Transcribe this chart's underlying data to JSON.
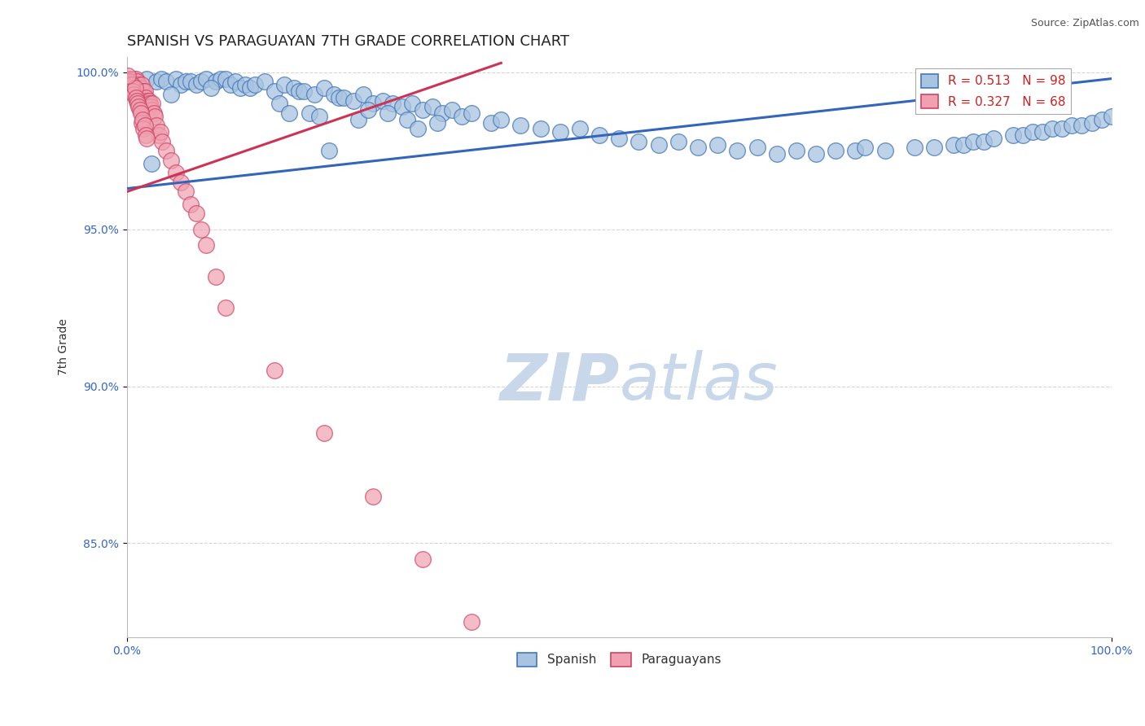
{
  "title": "SPANISH VS PARAGUAYAN 7TH GRADE CORRELATION CHART",
  "source_text": "Source: ZipAtlas.com",
  "ylabel": "7th Grade",
  "xlim": [
    0.0,
    1.0
  ],
  "ylim": [
    0.82,
    1.005
  ],
  "yticks": [
    0.85,
    0.9,
    0.95,
    1.0
  ],
  "ytick_labels": [
    "85.0%",
    "90.0%",
    "95.0%",
    "100.0%"
  ],
  "legend_blue_label": "R = 0.513   N = 98",
  "legend_pink_label": "R = 0.327   N = 68",
  "legend_series_blue": "Spanish",
  "legend_series_pink": "Paraguayans",
  "blue_color": "#a8c4e0",
  "pink_color": "#f0a0b0",
  "blue_edge_color": "#4477bb",
  "pink_edge_color": "#cc4466",
  "blue_line_color": "#3366bb",
  "pink_line_color": "#cc3355",
  "watermark_zip": "ZIP",
  "watermark_atlas": "atlas",
  "watermark_color": "#c8d8ea",
  "background_color": "#ffffff",
  "grid_color": "#cccccc",
  "title_fontsize": 13,
  "blue_x": [
    0.02,
    0.03,
    0.035,
    0.04,
    0.05,
    0.055,
    0.06,
    0.065,
    0.07,
    0.075,
    0.08,
    0.09,
    0.095,
    0.1,
    0.105,
    0.11,
    0.115,
    0.12,
    0.125,
    0.13,
    0.14,
    0.15,
    0.16,
    0.17,
    0.175,
    0.18,
    0.19,
    0.2,
    0.21,
    0.215,
    0.22,
    0.23,
    0.24,
    0.25,
    0.26,
    0.27,
    0.28,
    0.29,
    0.3,
    0.31,
    0.32,
    0.33,
    0.34,
    0.35,
    0.37,
    0.38,
    0.4,
    0.42,
    0.44,
    0.46,
    0.48,
    0.5,
    0.52,
    0.54,
    0.56,
    0.58,
    0.6,
    0.62,
    0.64,
    0.66,
    0.68,
    0.7,
    0.72,
    0.74,
    0.75,
    0.77,
    0.8,
    0.82,
    0.84,
    0.85,
    0.86,
    0.87,
    0.88,
    0.9,
    0.91,
    0.92,
    0.93,
    0.94,
    0.95,
    0.96,
    0.97,
    0.98,
    0.99,
    1.0,
    0.025,
    0.045,
    0.085,
    0.155,
    0.165,
    0.185,
    0.195,
    0.205,
    0.235,
    0.245,
    0.265,
    0.285,
    0.295,
    0.315
  ],
  "blue_y": [
    0.998,
    0.997,
    0.998,
    0.997,
    0.998,
    0.996,
    0.997,
    0.997,
    0.996,
    0.997,
    0.998,
    0.997,
    0.998,
    0.998,
    0.996,
    0.997,
    0.995,
    0.996,
    0.995,
    0.996,
    0.997,
    0.994,
    0.996,
    0.995,
    0.994,
    0.994,
    0.993,
    0.995,
    0.993,
    0.992,
    0.992,
    0.991,
    0.993,
    0.99,
    0.991,
    0.99,
    0.989,
    0.99,
    0.988,
    0.989,
    0.987,
    0.988,
    0.986,
    0.987,
    0.984,
    0.985,
    0.983,
    0.982,
    0.981,
    0.982,
    0.98,
    0.979,
    0.978,
    0.977,
    0.978,
    0.976,
    0.977,
    0.975,
    0.976,
    0.974,
    0.975,
    0.974,
    0.975,
    0.975,
    0.976,
    0.975,
    0.976,
    0.976,
    0.977,
    0.977,
    0.978,
    0.978,
    0.979,
    0.98,
    0.98,
    0.981,
    0.981,
    0.982,
    0.982,
    0.983,
    0.983,
    0.984,
    0.985,
    0.986,
    0.971,
    0.993,
    0.995,
    0.99,
    0.987,
    0.987,
    0.986,
    0.975,
    0.985,
    0.988,
    0.987,
    0.985,
    0.982,
    0.984
  ],
  "pink_x": [
    0.001,
    0.002,
    0.003,
    0.004,
    0.005,
    0.006,
    0.007,
    0.008,
    0.009,
    0.01,
    0.011,
    0.012,
    0.013,
    0.014,
    0.015,
    0.016,
    0.017,
    0.018,
    0.019,
    0.02,
    0.021,
    0.022,
    0.023,
    0.024,
    0.025,
    0.026,
    0.027,
    0.028,
    0.03,
    0.032,
    0.034,
    0.036,
    0.04,
    0.045,
    0.05,
    0.055,
    0.06,
    0.065,
    0.07,
    0.075,
    0.08,
    0.09,
    0.1,
    0.15,
    0.2,
    0.25,
    0.3,
    0.35,
    0.002,
    0.003,
    0.004,
    0.005,
    0.006,
    0.007,
    0.008,
    0.009,
    0.01,
    0.011,
    0.012,
    0.013,
    0.014,
    0.015,
    0.016,
    0.017,
    0.018,
    0.019,
    0.02,
    0.001
  ],
  "pink_y": [
    0.998,
    0.998,
    0.998,
    0.997,
    0.998,
    0.997,
    0.998,
    0.996,
    0.998,
    0.997,
    0.995,
    0.996,
    0.994,
    0.995,
    0.996,
    0.993,
    0.994,
    0.994,
    0.992,
    0.991,
    0.99,
    0.991,
    0.99,
    0.989,
    0.988,
    0.99,
    0.987,
    0.986,
    0.983,
    0.98,
    0.981,
    0.978,
    0.975,
    0.972,
    0.968,
    0.965,
    0.962,
    0.958,
    0.955,
    0.95,
    0.945,
    0.935,
    0.925,
    0.905,
    0.885,
    0.865,
    0.845,
    0.825,
    0.997,
    0.996,
    0.995,
    0.996,
    0.994,
    0.993,
    0.995,
    0.992,
    0.991,
    0.99,
    0.989,
    0.988,
    0.987,
    0.984,
    0.985,
    0.982,
    0.983,
    0.98,
    0.979,
    0.999
  ],
  "blue_trend_x": [
    0.0,
    1.0
  ],
  "blue_trend_y": [
    0.963,
    0.998
  ],
  "pink_trend_x": [
    0.0,
    0.38
  ],
  "pink_trend_y": [
    0.962,
    1.003
  ]
}
